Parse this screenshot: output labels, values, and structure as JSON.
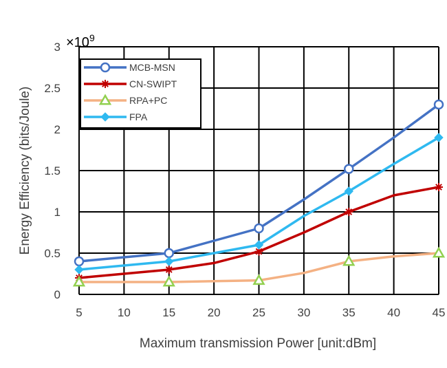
{
  "chart_data": {
    "type": "line",
    "title": "",
    "xlabel": "Maximum transmission Power [unit:dBm]",
    "ylabel": "Energy Efficiency (bits/Joule)",
    "y_exponent_label": "×10",
    "y_exponent_power": "9",
    "xlim": [
      5,
      45
    ],
    "ylim": [
      0,
      3
    ],
    "x_ticks": [
      "5",
      "10",
      "15",
      "20",
      "25",
      "30",
      "35",
      "40",
      "45"
    ],
    "y_ticks": [
      "0",
      "0.5",
      "1",
      "1.5",
      "2",
      "2.5",
      "3"
    ],
    "grid": true,
    "legend_position": "top-left",
    "series": [
      {
        "name": "MCB-MSN",
        "color": "#4472C4",
        "marker": "circle",
        "line": [
          [
            5,
            0.4
          ],
          [
            15,
            0.5
          ],
          [
            20,
            0.65
          ],
          [
            25,
            0.8
          ],
          [
            30,
            1.15
          ],
          [
            35,
            1.52
          ],
          [
            40,
            1.9
          ],
          [
            45,
            2.3
          ]
        ],
        "markers": [
          [
            5,
            0.4
          ],
          [
            15,
            0.5
          ],
          [
            25,
            0.8
          ],
          [
            35,
            1.52
          ],
          [
            45,
            2.3
          ]
        ]
      },
      {
        "name": "CN-SWIPT",
        "color": "#C00000",
        "marker": "star",
        "line": [
          [
            5,
            0.2
          ],
          [
            15,
            0.3
          ],
          [
            20,
            0.38
          ],
          [
            25,
            0.52
          ],
          [
            30,
            0.75
          ],
          [
            35,
            1.0
          ],
          [
            40,
            1.2
          ],
          [
            45,
            1.3
          ]
        ],
        "markers": [
          [
            5,
            0.2
          ],
          [
            15,
            0.3
          ],
          [
            25,
            0.52
          ],
          [
            35,
            1.0
          ],
          [
            45,
            1.3
          ]
        ]
      },
      {
        "name": "RPA+PC",
        "color": "#F4B183",
        "marker_color": "#92D050",
        "marker": "triangle",
        "line": [
          [
            5,
            0.15
          ],
          [
            15,
            0.15
          ],
          [
            20,
            0.16
          ],
          [
            25,
            0.17
          ],
          [
            30,
            0.26
          ],
          [
            35,
            0.4
          ],
          [
            40,
            0.46
          ],
          [
            45,
            0.5
          ]
        ],
        "markers": [
          [
            5,
            0.15
          ],
          [
            15,
            0.15
          ],
          [
            25,
            0.17
          ],
          [
            35,
            0.4
          ],
          [
            45,
            0.5
          ]
        ]
      },
      {
        "name": "FPA",
        "color": "#2FB9F0",
        "marker": "diamond",
        "line": [
          [
            5,
            0.3
          ],
          [
            15,
            0.4
          ],
          [
            20,
            0.5
          ],
          [
            25,
            0.6
          ],
          [
            30,
            0.95
          ],
          [
            35,
            1.25
          ],
          [
            40,
            1.58
          ],
          [
            45,
            1.9
          ]
        ],
        "markers": [
          [
            5,
            0.3
          ],
          [
            15,
            0.4
          ],
          [
            25,
            0.6
          ],
          [
            35,
            1.25
          ],
          [
            45,
            1.9
          ]
        ]
      }
    ]
  }
}
